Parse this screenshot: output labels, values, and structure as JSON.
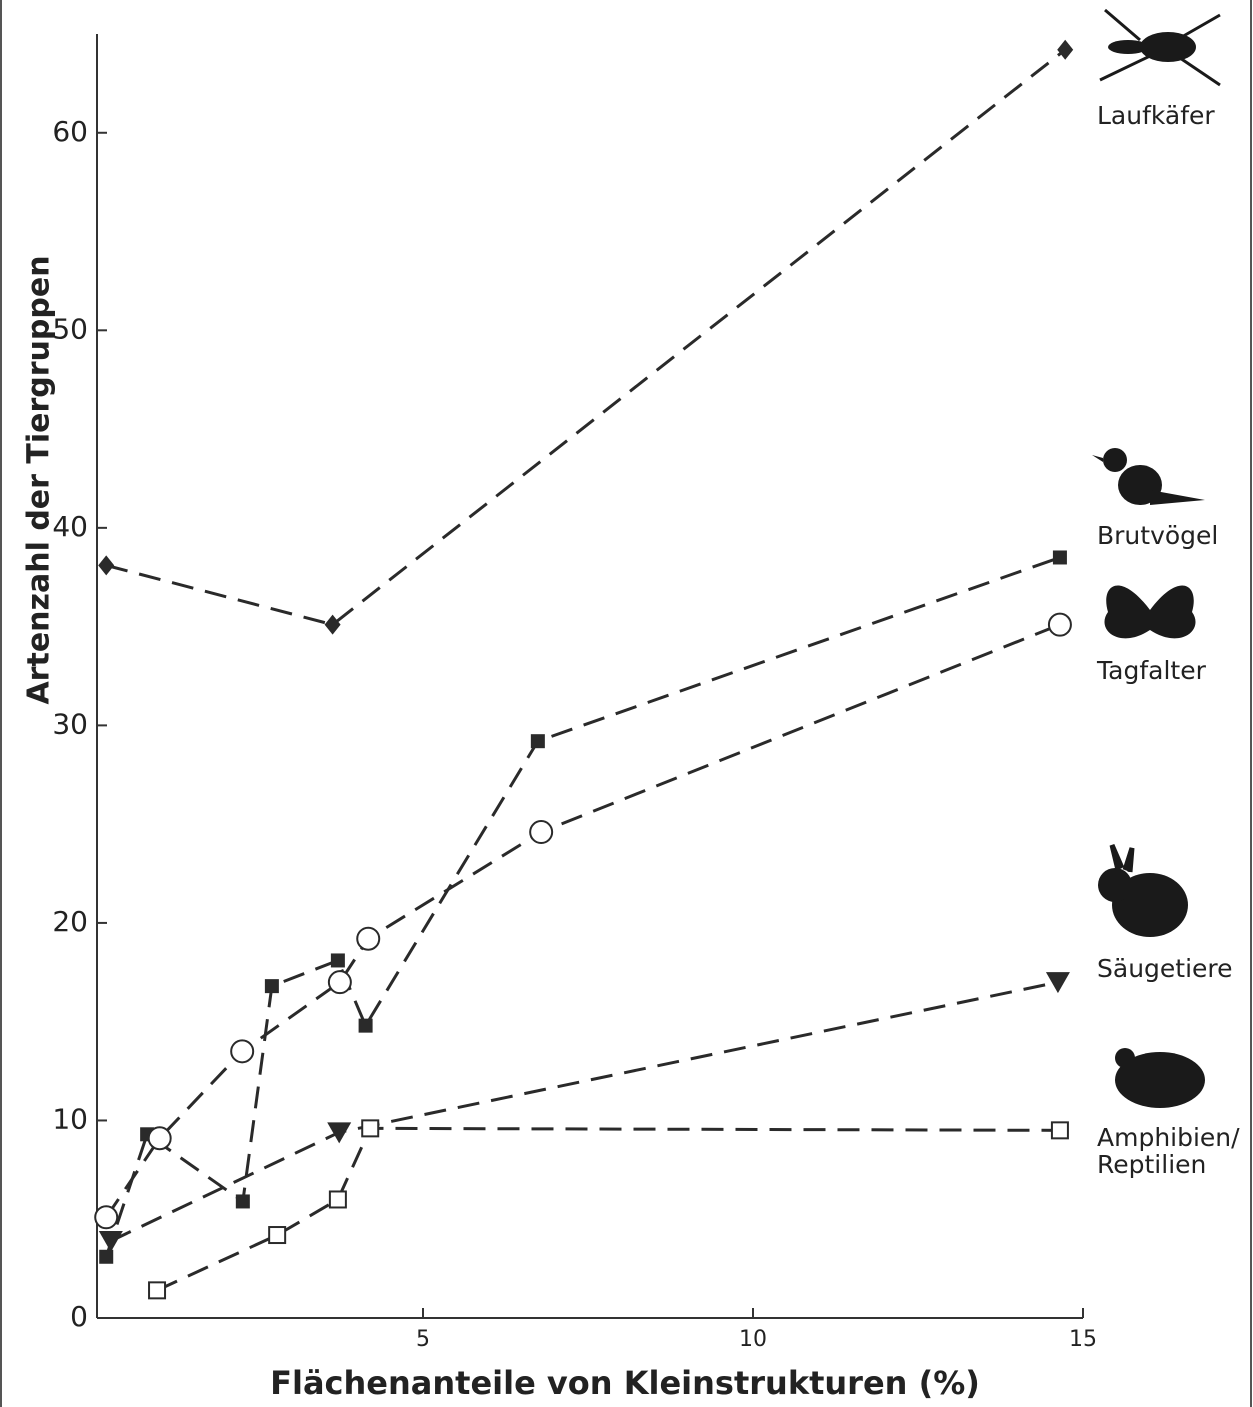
{
  "chart_data": {
    "type": "line",
    "x_label": "Flächenanteile von Kleinstrukturen (%)",
    "y_label": "Artenzahl der Tiergruppen",
    "xlim": [
      0,
      15
    ],
    "xticks": [
      5,
      10,
      15
    ],
    "ylim": [
      0,
      65
    ],
    "yticks": [
      0,
      10,
      20,
      30,
      40,
      50,
      60
    ],
    "grid": false,
    "series": [
      {
        "name": "Laufkäfer",
        "color": "#2a2a2a",
        "marker": "diamond",
        "x": [
          0.17,
          3.6,
          14.7
        ],
        "values": [
          38.1,
          35.1,
          64.2
        ]
      },
      {
        "name": "Brutvögel",
        "color": "#2a2a2a",
        "marker": "square",
        "x": [
          0.17,
          0.79,
          2.24,
          2.68,
          3.68,
          4.1,
          6.71,
          14.62
        ],
        "values": [
          3.1,
          9.3,
          5.9,
          16.8,
          18.1,
          14.8,
          29.2,
          38.5
        ]
      },
      {
        "name": "Tagfalter",
        "color": "#2a2a2a",
        "marker": "circle",
        "x": [
          0.17,
          0.98,
          2.23,
          3.71,
          4.14,
          6.76,
          14.62
        ],
        "values": [
          5.1,
          9.1,
          13.5,
          17.0,
          19.2,
          24.6,
          35.1
        ]
      },
      {
        "name": "Säugetiere",
        "color": "#2a2a2a",
        "marker": "triangle-down",
        "x": [
          0.24,
          3.7,
          14.59
        ],
        "values": [
          3.9,
          9.4,
          17.0
        ]
      },
      {
        "name": "Amphibien/\nReptilien",
        "color": "#2a2a2a",
        "marker": "square-open",
        "x": [
          0.94,
          2.76,
          3.68,
          4.17,
          14.62
        ],
        "values": [
          1.4,
          4.2,
          6.0,
          9.6,
          9.5
        ]
      }
    ]
  }
}
